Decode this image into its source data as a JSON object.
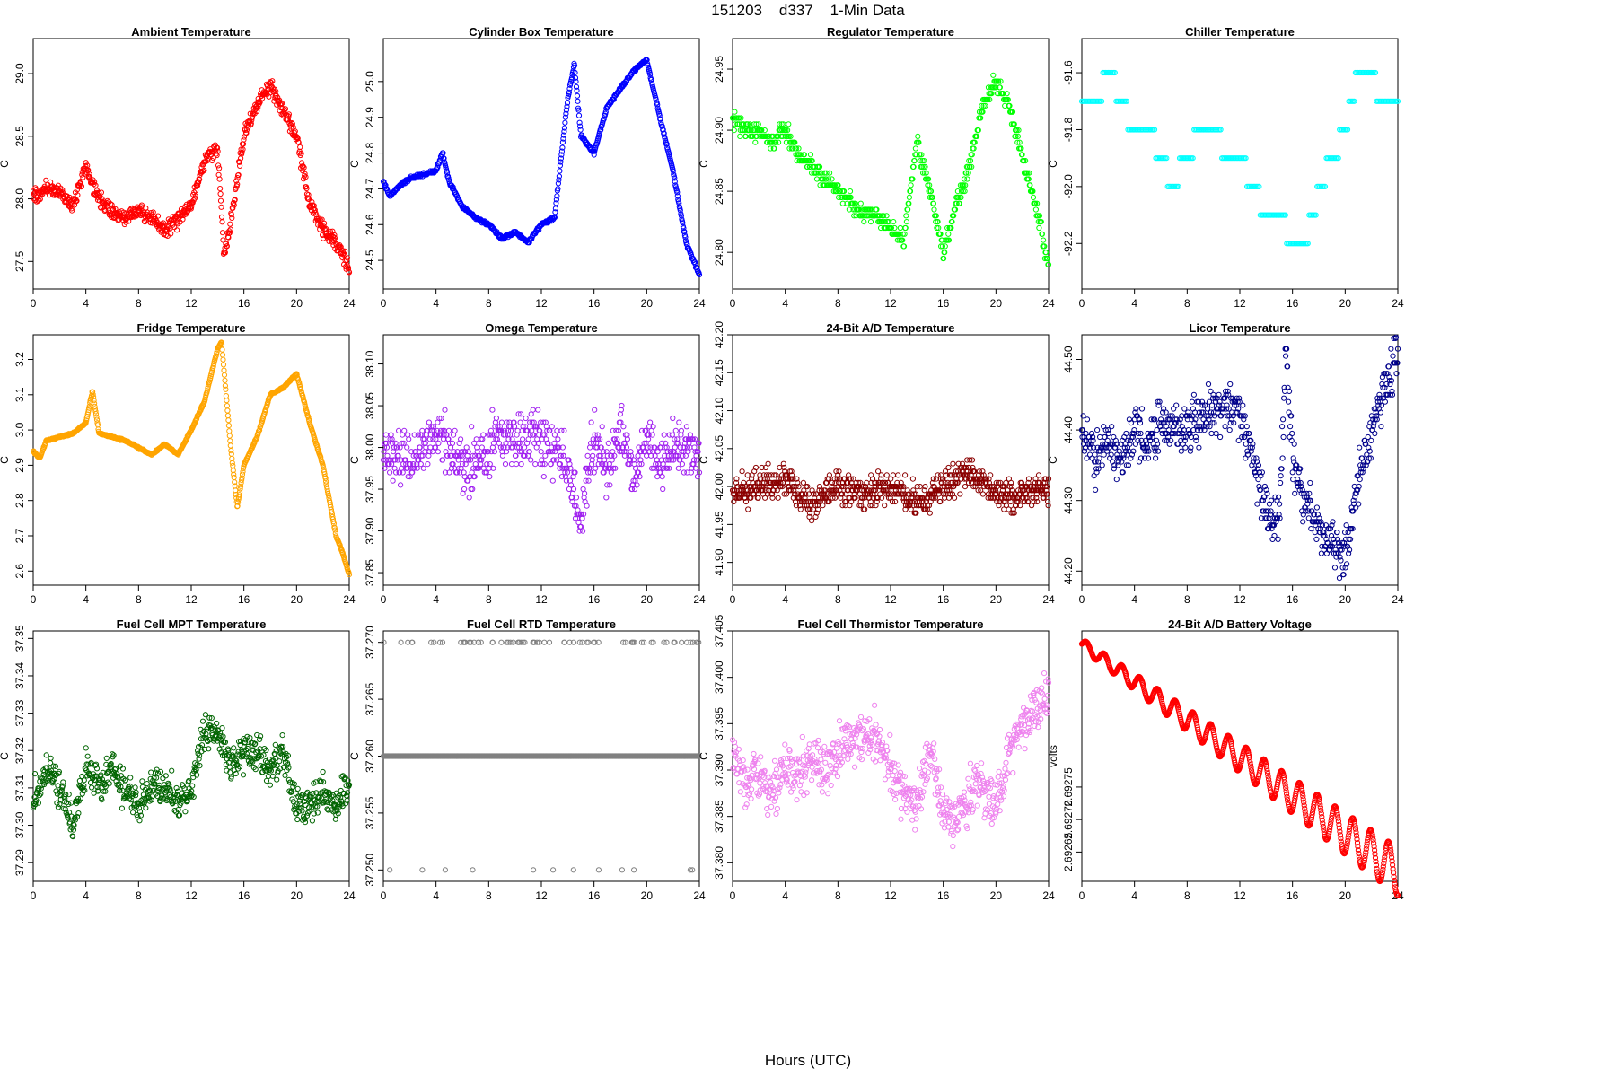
{
  "figure": {
    "title": "151203    d337    1-Min Data",
    "xlabel": "Hours (UTC)"
  },
  "chart_data": [
    {
      "type": "scatter",
      "title": "Ambient Temperature",
      "ylabel": "C",
      "color": "#ff0000",
      "xlim": [
        0,
        24
      ],
      "ylim": [
        27.28,
        29.28
      ],
      "xticks": [
        "0",
        "4",
        "8",
        "12",
        "16",
        "20",
        "24"
      ],
      "yticks": [
        "27.5",
        "28.0",
        "28.5",
        "29.0"
      ],
      "series": [
        {
          "name": "Ambient Temperature",
          "x": [
            0,
            1,
            2,
            3,
            4,
            5,
            6,
            7,
            8,
            9,
            10,
            11,
            12,
            13,
            14,
            14.5,
            15,
            16,
            17,
            18,
            19,
            20,
            21,
            22,
            23,
            24
          ],
          "y": [
            28.0,
            28.1,
            28.05,
            27.95,
            28.25,
            28.0,
            27.9,
            27.85,
            27.9,
            27.85,
            27.75,
            27.85,
            27.95,
            28.3,
            28.4,
            27.55,
            27.8,
            28.5,
            28.75,
            28.9,
            28.7,
            28.5,
            27.95,
            27.75,
            27.65,
            27.45
          ]
        }
      ]
    },
    {
      "type": "scatter",
      "title": "Cylinder Box Temperature",
      "ylabel": "C",
      "color": "#0000ff",
      "xlim": [
        0,
        24
      ],
      "ylim": [
        24.42,
        25.12
      ],
      "xticks": [
        "0",
        "4",
        "8",
        "12",
        "16",
        "20",
        "24"
      ],
      "yticks": [
        "24.5",
        "24.6",
        "24.7",
        "24.8",
        "24.9",
        "25.0"
      ],
      "series": [
        {
          "name": "Cylinder Box Temperature",
          "x": [
            0,
            0.5,
            1,
            2,
            3,
            4,
            4.5,
            5,
            6,
            7,
            8,
            9,
            10,
            11,
            12,
            13,
            14,
            14.5,
            15,
            16,
            17,
            18,
            19,
            20,
            21,
            22,
            23,
            24
          ],
          "y": [
            24.72,
            24.68,
            24.7,
            24.73,
            24.74,
            24.75,
            24.8,
            24.72,
            24.65,
            24.62,
            24.6,
            24.56,
            24.58,
            24.55,
            24.6,
            24.62,
            24.95,
            25.05,
            24.85,
            24.8,
            24.93,
            24.98,
            25.03,
            25.06,
            24.9,
            24.75,
            24.55,
            24.46
          ]
        }
      ]
    },
    {
      "type": "scatter",
      "title": "Regulator Temperature",
      "ylabel": "C",
      "color": "#00ff00",
      "xlim": [
        0,
        24
      ],
      "ylim": [
        24.77,
        24.975
      ],
      "xticks": [
        "0",
        "4",
        "8",
        "12",
        "16",
        "20",
        "24"
      ],
      "yticks": [
        "24.80",
        "24.85",
        "24.90",
        "24.95"
      ],
      "series": [
        {
          "name": "Regulator Temperature",
          "x": [
            0,
            1,
            2,
            3,
            4,
            5,
            6,
            7,
            8,
            9,
            10,
            11,
            12,
            13,
            14,
            15,
            16,
            17,
            18,
            19,
            20,
            21,
            22,
            23,
            24
          ],
          "y": [
            24.91,
            24.9,
            24.9,
            24.89,
            24.9,
            24.88,
            24.87,
            24.86,
            24.85,
            24.84,
            24.83,
            24.83,
            24.82,
            24.81,
            24.89,
            24.85,
            24.8,
            24.84,
            24.87,
            24.92,
            24.94,
            24.92,
            24.88,
            24.84,
            24.79
          ]
        }
      ]
    },
    {
      "type": "scatter",
      "title": "Chiller Temperature",
      "ylabel": "C",
      "color": "#00ffff",
      "xlim": [
        0,
        24
      ],
      "ylim": [
        -92.36,
        -91.48
      ],
      "xticks": [
        "0",
        "4",
        "8",
        "12",
        "16",
        "20",
        "24"
      ],
      "yticks": [
        "-92.2",
        "-92.0",
        "-91.8",
        "-91.6"
      ],
      "series": [
        {
          "name": "Chiller Temperature",
          "x": [
            0,
            1,
            2,
            3,
            4,
            5,
            6,
            7,
            8,
            9,
            10,
            11,
            12,
            13,
            14,
            15,
            16,
            17,
            18,
            19,
            20,
            21,
            22,
            23,
            24
          ],
          "y": [
            -91.7,
            -91.7,
            -91.6,
            -91.7,
            -91.8,
            -91.8,
            -91.9,
            -92.0,
            -91.9,
            -91.8,
            -91.8,
            -91.9,
            -91.9,
            -92.0,
            -92.1,
            -92.1,
            -92.2,
            -92.2,
            -92.0,
            -91.9,
            -91.8,
            -91.6,
            -91.6,
            -91.7,
            -91.7
          ]
        }
      ]
    },
    {
      "type": "scatter",
      "title": "Fridge Temperature",
      "ylabel": "C",
      "color": "#ffa500",
      "xlim": [
        0,
        24
      ],
      "ylim": [
        2.56,
        3.27
      ],
      "xticks": [
        "0",
        "4",
        "8",
        "12",
        "16",
        "20",
        "24"
      ],
      "yticks": [
        "2.6",
        "2.7",
        "2.8",
        "2.9",
        "3.0",
        "3.1",
        "3.2"
      ],
      "series": [
        {
          "name": "Fridge Temperature",
          "x": [
            0,
            0.5,
            1,
            2,
            3,
            4,
            4.5,
            5,
            6,
            7,
            8,
            9,
            10,
            11,
            12,
            13,
            14,
            14.3,
            15,
            15.5,
            16,
            17,
            18,
            19,
            20,
            21,
            22,
            23,
            23.5,
            24
          ],
          "y": [
            2.94,
            2.92,
            2.97,
            2.98,
            2.99,
            3.02,
            3.11,
            2.99,
            2.98,
            2.97,
            2.95,
            2.93,
            2.96,
            2.93,
            3.0,
            3.08,
            3.23,
            3.25,
            2.95,
            2.78,
            2.9,
            2.98,
            3.1,
            3.12,
            3.16,
            3.02,
            2.9,
            2.7,
            2.65,
            2.59
          ]
        }
      ]
    },
    {
      "type": "scatter",
      "title": "Omega Temperature",
      "ylabel": "C",
      "color": "#a020f0",
      "xlim": [
        0,
        24
      ],
      "ylim": [
        37.835,
        38.135
      ],
      "xticks": [
        "0",
        "4",
        "8",
        "12",
        "16",
        "20",
        "24"
      ],
      "yticks": [
        "37.85",
        "37.90",
        "37.95",
        "38.00",
        "38.05",
        "38.10"
      ],
      "series": [
        {
          "name": "Omega Temperature",
          "x": [
            0,
            2,
            4,
            6,
            8,
            10,
            12,
            13,
            14,
            15,
            16,
            17,
            18,
            19,
            20,
            21,
            22,
            23,
            24
          ],
          "y": [
            38.0,
            37.98,
            38.02,
            37.97,
            38.0,
            38.01,
            38.01,
            38.0,
            37.98,
            37.9,
            38.02,
            37.97,
            38.03,
            37.96,
            38.02,
            37.98,
            38.0,
            38.0,
            37.99
          ]
        }
      ]
    },
    {
      "type": "scatter",
      "title": "24-Bit A/D Temperature",
      "ylabel": "C",
      "color": "#8b0000",
      "xlim": [
        0,
        24
      ],
      "ylim": [
        41.87,
        42.2
      ],
      "xticks": [
        "0",
        "4",
        "8",
        "12",
        "16",
        "20",
        "24"
      ],
      "yticks": [
        "41.90",
        "41.95",
        "42.00",
        "42.05",
        "42.10",
        "42.15",
        "42.20"
      ],
      "series": [
        {
          "name": "24-Bit A/D Temperature",
          "x": [
            0,
            2,
            4,
            6,
            8,
            10,
            12,
            14,
            16,
            18,
            20,
            22,
            24
          ],
          "y": [
            41.99,
            42.0,
            42.01,
            41.98,
            42.0,
            41.99,
            42.0,
            41.98,
            42.0,
            42.02,
            41.99,
            41.99,
            42.0
          ]
        }
      ]
    },
    {
      "type": "scatter",
      "title": "Licor Temperature",
      "ylabel": "C",
      "color": "#00008b",
      "xlim": [
        0,
        24
      ],
      "ylim": [
        44.18,
        44.535
      ],
      "xticks": [
        "0",
        "4",
        "8",
        "12",
        "16",
        "20",
        "24"
      ],
      "yticks": [
        "44.20",
        "44.30",
        "44.40",
        "44.50"
      ],
      "series": [
        {
          "name": "Licor Temperature",
          "x": [
            0,
            1,
            2,
            3,
            4,
            5,
            6,
            7,
            8,
            9,
            10,
            11,
            12,
            13,
            14,
            15,
            15.5,
            16,
            17,
            18,
            19,
            20,
            21,
            22,
            23,
            24
          ],
          "y": [
            44.4,
            44.36,
            44.38,
            44.36,
            44.4,
            44.38,
            44.42,
            44.4,
            44.4,
            44.42,
            44.43,
            44.43,
            44.42,
            44.36,
            44.28,
            44.28,
            44.52,
            44.36,
            44.3,
            44.26,
            44.24,
            44.22,
            44.33,
            44.4,
            44.46,
            44.51
          ]
        }
      ]
    },
    {
      "type": "scatter",
      "title": "Fuel Cell MPT Temperature",
      "ylabel": "C",
      "color": "#006400",
      "xlim": [
        0,
        24
      ],
      "ylim": [
        37.285,
        37.352
      ],
      "xticks": [
        "0",
        "4",
        "8",
        "12",
        "16",
        "20",
        "24"
      ],
      "yticks": [
        "37.29",
        "37.30",
        "37.31",
        "37.32",
        "37.33",
        "37.34",
        "37.35"
      ],
      "series": [
        {
          "name": "Fuel Cell MPT Temperature",
          "x": [
            0,
            1,
            2,
            3,
            4,
            5,
            6,
            7,
            8,
            9,
            10,
            11,
            12,
            13,
            14,
            15,
            16,
            17,
            18,
            19,
            20,
            21,
            22,
            23,
            24
          ],
          "y": [
            37.305,
            37.315,
            37.31,
            37.3,
            37.315,
            37.31,
            37.315,
            37.31,
            37.305,
            37.31,
            37.31,
            37.305,
            37.31,
            37.325,
            37.325,
            37.315,
            37.32,
            37.32,
            37.315,
            37.32,
            37.305,
            37.305,
            37.31,
            37.305,
            37.31
          ]
        }
      ]
    },
    {
      "type": "scatter",
      "title": "Fuel Cell RTD Temperature",
      "ylabel": "C",
      "color": "#808080",
      "xlim": [
        0,
        24
      ],
      "ylim": [
        37.249,
        37.271
      ],
      "xticks": [
        "0",
        "4",
        "8",
        "12",
        "16",
        "20",
        "24"
      ],
      "yticks": [
        "37.250",
        "37.255",
        "37.260",
        "37.265",
        "37.270"
      ],
      "series": [
        {
          "name": "Fuel Cell RTD Temperature",
          "x": [
            0,
            24
          ],
          "y": [
            37.26,
            37.26
          ]
        }
      ]
    },
    {
      "type": "scatter",
      "title": "Fuel Cell Thermistor Temperature",
      "ylabel": "C",
      "color": "#ee82ee",
      "xlim": [
        0,
        24
      ],
      "ylim": [
        37.378,
        37.405
      ],
      "xticks": [
        "0",
        "4",
        "8",
        "12",
        "16",
        "20",
        "24"
      ],
      "yticks": [
        "37.380",
        "37.385",
        "37.390",
        "37.395",
        "37.400",
        "37.405"
      ],
      "series": [
        {
          "name": "Fuel Cell Thermistor Temperature",
          "x": [
            0,
            1,
            2,
            3,
            4,
            5,
            6,
            7,
            8,
            9,
            10,
            11,
            12,
            13,
            14,
            15,
            16,
            17,
            18,
            19,
            20,
            21,
            22,
            23,
            24
          ],
          "y": [
            37.392,
            37.388,
            37.39,
            37.387,
            37.391,
            37.389,
            37.391,
            37.39,
            37.392,
            37.393,
            37.394,
            37.393,
            37.391,
            37.387,
            37.386,
            37.392,
            37.386,
            37.384,
            37.388,
            37.388,
            37.386,
            37.392,
            37.395,
            37.396,
            37.398
          ]
        }
      ]
    },
    {
      "type": "line",
      "title": "24-Bit A/D Battery Voltage",
      "ylabel": "volts",
      "color": "#ff0000",
      "xlim": [
        0,
        24
      ],
      "ylim": [
        2.692605,
        2.69299
      ],
      "xticks": [
        "0",
        "4",
        "8",
        "12",
        "16",
        "20",
        "24"
      ],
      "yticks": [
        "2.69265",
        "2.69270",
        "2.69275"
      ],
      "series": [
        {
          "name": "24-Bit A/D Battery Voltage",
          "x": [
            0,
            24
          ],
          "y": [
            2.69297,
            2.69262
          ]
        }
      ]
    }
  ]
}
